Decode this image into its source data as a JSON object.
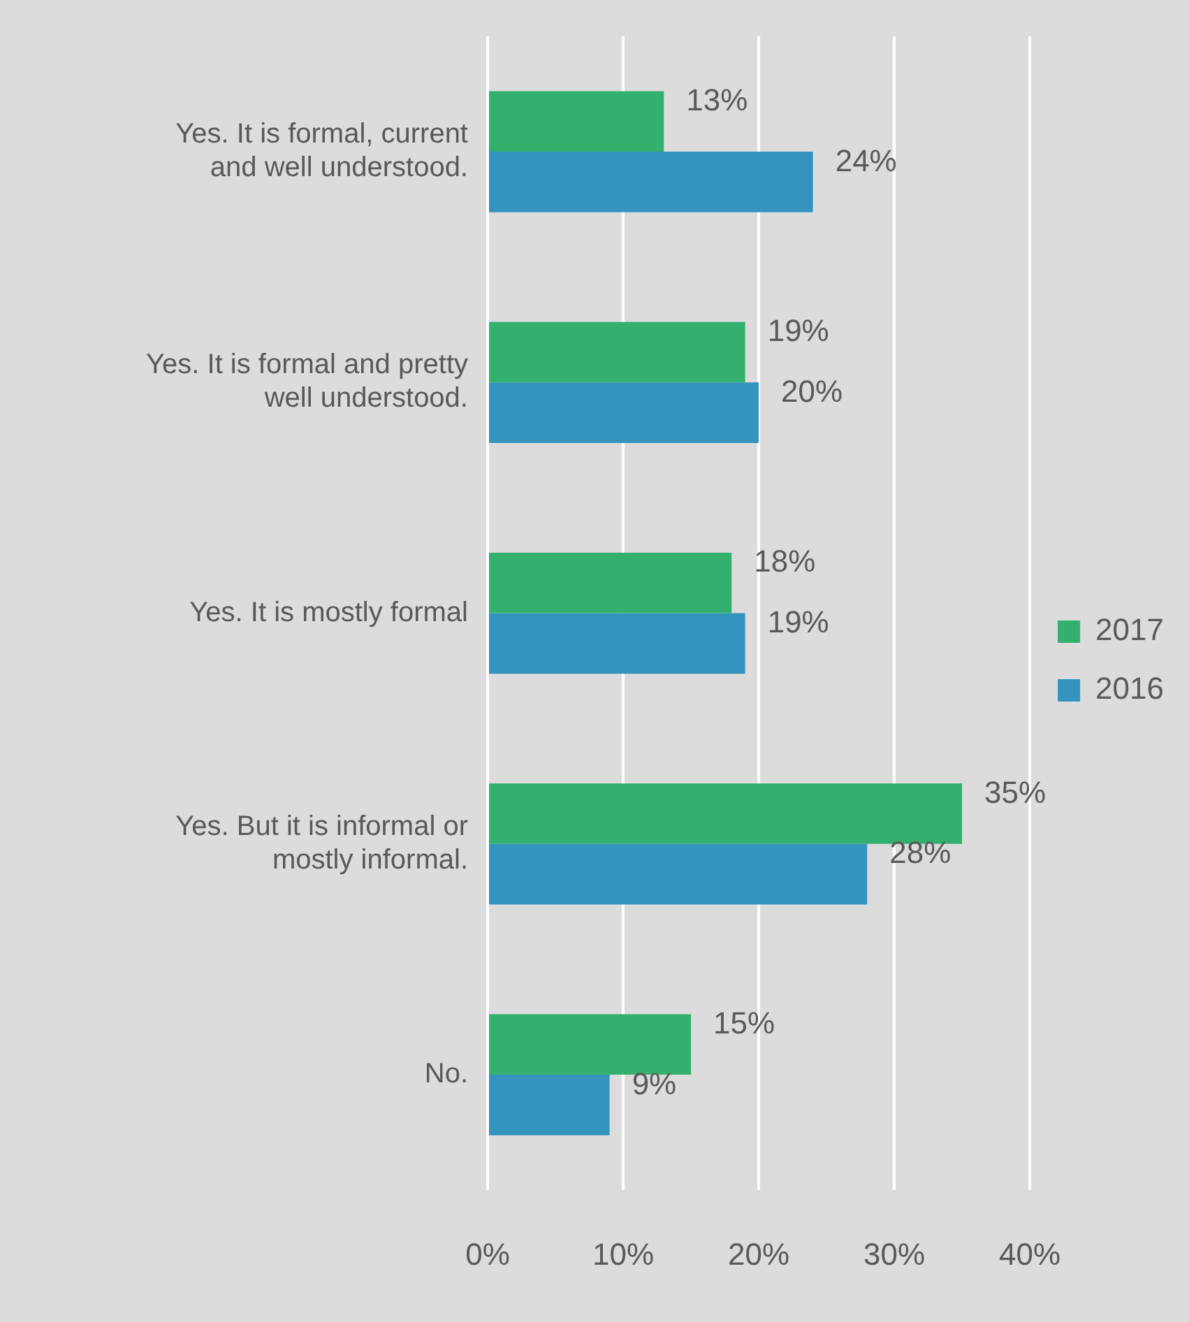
{
  "chart_data": {
    "type": "bar",
    "orientation": "horizontal",
    "categories": [
      "Yes. It is formal, current and well understood.",
      "Yes. It is formal and pretty well understood.",
      "Yes. It is mostly formal",
      "Yes. But it is informal or mostly informal.",
      "No."
    ],
    "series": [
      {
        "name": "2017",
        "color": "#33b06e",
        "values": [
          13,
          19,
          18,
          35,
          15
        ],
        "value_labels": [
          "13%",
          "19%",
          "18%",
          "35%",
          "15%"
        ]
      },
      {
        "name": "2016",
        "color": "#3494be",
        "values": [
          24,
          20,
          19,
          28,
          9
        ],
        "value_labels": [
          "24%",
          "20%",
          "19%",
          "28%",
          "9%"
        ]
      }
    ],
    "xlim": [
      0,
      40
    ],
    "xticks": [
      {
        "value": 0,
        "label": "0%"
      },
      {
        "value": 10,
        "label": "10%"
      },
      {
        "value": 20,
        "label": "20%"
      },
      {
        "value": 30,
        "label": "30%"
      },
      {
        "value": 40,
        "label": "40%"
      }
    ],
    "grid": "x",
    "legend": "right"
  }
}
